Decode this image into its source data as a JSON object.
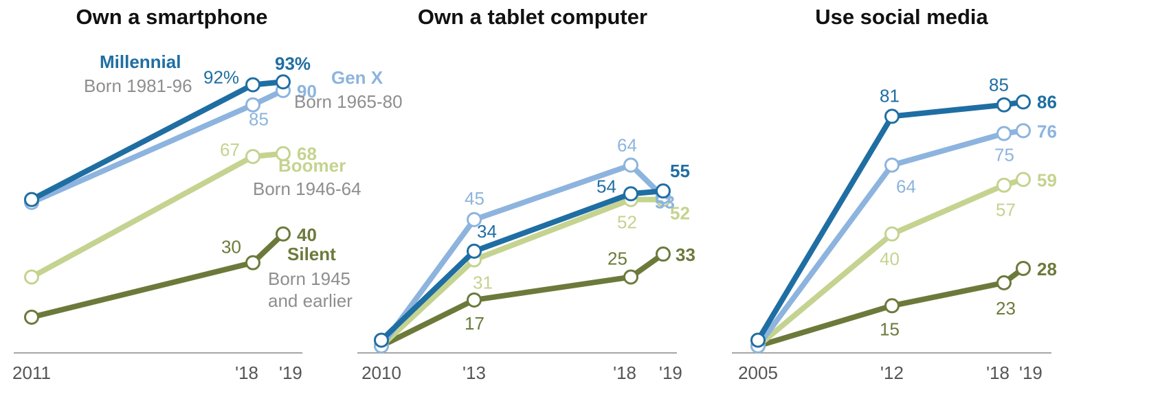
{
  "colors": {
    "Millennial": "#1f6ea3",
    "Gen X": "#8db4de",
    "Boomer": "#c4d38f",
    "Silent": "#6b7a3a",
    "axis": "#888888",
    "sub": "#8e8e8e"
  },
  "legend": {
    "Millennial": {
      "name": "Millennial",
      "sub": "Born 1981-96"
    },
    "Gen X": {
      "name": "Gen X",
      "sub": "Born 1965-80"
    },
    "Boomer": {
      "name": "Boomer",
      "sub": "Born 1946-64"
    },
    "Silent": {
      "name": "Silent",
      "sub1": "Born 1945",
      "sub2": "and earlier"
    }
  },
  "chart_data": [
    {
      "type": "line",
      "title": "Own a smartphone",
      "x": [
        2011,
        2018,
        2019
      ],
      "x_tick_labels": [
        {
          "x": 2011,
          "label": "2011"
        },
        {
          "x": 2018,
          "label": "'18"
        },
        {
          "x": 2019,
          "label": "'19"
        }
      ],
      "ylim": [
        0,
        100
      ],
      "series": [
        {
          "name": "Silent",
          "values": [
            11,
            30,
            40
          ],
          "labels": [
            "",
            "30",
            "40"
          ]
        },
        {
          "name": "Boomer",
          "values": [
            25,
            67,
            68
          ],
          "labels": [
            "",
            "67",
            "68"
          ]
        },
        {
          "name": "Gen X",
          "values": [
            51,
            85,
            90
          ],
          "labels": [
            "",
            "85",
            "90"
          ]
        },
        {
          "name": "Millennial",
          "values": [
            52,
            92,
            93
          ],
          "labels": [
            "",
            "92%",
            "93%"
          ]
        }
      ]
    },
    {
      "type": "line",
      "title": "Own a tablet computer",
      "x": [
        2010,
        2013,
        2018,
        2019
      ],
      "x_tick_labels": [
        {
          "x": 2010,
          "label": "2010"
        },
        {
          "x": 2013,
          "label": "'13"
        },
        {
          "x": 2018,
          "label": "'18"
        },
        {
          "x": 2019,
          "label": "'19"
        }
      ],
      "ylim": [
        0,
        100
      ],
      "series": [
        {
          "name": "Silent",
          "values": [
            1,
            17,
            25,
            33
          ],
          "labels": [
            "",
            "17",
            "25",
            "33"
          ]
        },
        {
          "name": "Boomer",
          "values": [
            1,
            31,
            52,
            52
          ],
          "labels": [
            "",
            "31",
            "52",
            "52"
          ]
        },
        {
          "name": "Gen X",
          "values": [
            1,
            45,
            64,
            53
          ],
          "labels": [
            "",
            "45",
            "64",
            "53"
          ]
        },
        {
          "name": "Millennial",
          "values": [
            3,
            34,
            54,
            55
          ],
          "labels": [
            "",
            "34",
            "54",
            "55"
          ]
        }
      ]
    },
    {
      "type": "line",
      "title": "Use social media",
      "x": [
        2005,
        2012,
        2018,
        2019
      ],
      "x_tick_labels": [
        {
          "x": 2005,
          "label": "2005"
        },
        {
          "x": 2012,
          "label": "'12"
        },
        {
          "x": 2018,
          "label": "'18"
        },
        {
          "x": 2019,
          "label": "'19"
        }
      ],
      "ylim": [
        0,
        100
      ],
      "series": [
        {
          "name": "Silent",
          "values": [
            1,
            15,
            23,
            28
          ],
          "labels": [
            "",
            "15",
            "23",
            "28"
          ]
        },
        {
          "name": "Boomer",
          "values": [
            1,
            40,
            57,
            59
          ],
          "labels": [
            "",
            "40",
            "57",
            "59"
          ]
        },
        {
          "name": "Gen X",
          "values": [
            1,
            64,
            75,
            76
          ],
          "labels": [
            "",
            "64",
            "75",
            "76"
          ]
        },
        {
          "name": "Millennial",
          "values": [
            3,
            81,
            85,
            86
          ],
          "labels": [
            "",
            "81",
            "85",
            "86"
          ]
        }
      ]
    }
  ]
}
